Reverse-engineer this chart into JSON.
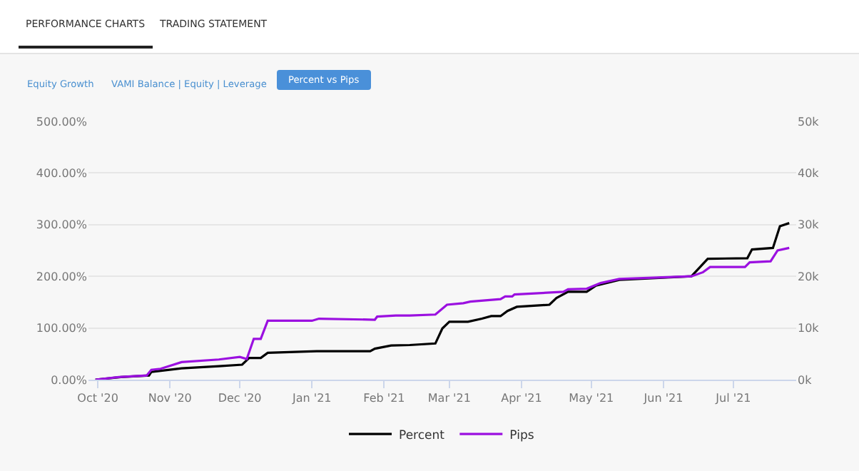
{
  "chart_data": {
    "type": "line",
    "annotations": [
      "PERFORMANCE CHARTS",
      "TRADING STATEMENT",
      "Equity Growth",
      "VAMI Balance | Equity | Leverage",
      "Percent vs Pips"
    ],
    "xlim": [
      "2020-09-27",
      "2021-07-28"
    ],
    "xticks": [
      {
        "value": "2020-10-01",
        "label": "Oct '20"
      },
      {
        "value": "2020-11-01",
        "label": "Nov '20"
      },
      {
        "value": "2020-12-01",
        "label": "Dec '20"
      },
      {
        "value": "2021-01-01",
        "label": "Jan '21"
      },
      {
        "value": "2021-02-01",
        "label": "Feb '21"
      },
      {
        "value": "2021-03-01",
        "label": "Mar '21"
      },
      {
        "value": "2021-04-01",
        "label": "Apr '21"
      },
      {
        "value": "2021-05-01",
        "label": "May '21"
      },
      {
        "value": "2021-06-01",
        "label": "Jun '21"
      },
      {
        "value": "2021-07-01",
        "label": "Jul '21"
      }
    ],
    "ylim": [
      0,
      500
    ],
    "yticks": [
      {
        "value": 0,
        "label": "0.00%"
      },
      {
        "value": 100,
        "label": "100.00%"
      },
      {
        "value": 200,
        "label": "200.00%"
      },
      {
        "value": 300,
        "label": "300.00%"
      },
      {
        "value": 400,
        "label": "400.00%"
      },
      {
        "value": 500,
        "label": "500.00%"
      }
    ],
    "y2lim": [
      0,
      50000
    ],
    "y2ticks": [
      {
        "value": 0,
        "label": "0k"
      },
      {
        "value": 10000,
        "label": "10k"
      },
      {
        "value": 20000,
        "label": "20k"
      },
      {
        "value": 30000,
        "label": "30k"
      },
      {
        "value": 40000,
        "label": "40k"
      },
      {
        "value": 50000,
        "label": "50k"
      }
    ],
    "grid": "y",
    "legend": "bottom",
    "marker": "none",
    "series": [
      {
        "name": "Percent",
        "color": "#000000",
        "x": [
          "2020-09-30",
          "2020-10-11",
          "2020-10-23",
          "2020-10-24",
          "2020-10-28",
          "2020-11-06",
          "2020-11-22",
          "2020-12-02",
          "2020-12-05",
          "2020-12-10",
          "2020-12-13",
          "2021-01-03",
          "2021-01-26",
          "2021-01-28",
          "2021-02-04",
          "2021-02-12",
          "2021-02-23",
          "2021-02-26",
          "2021-03-01",
          "2021-03-09",
          "2021-03-15",
          "2021-03-19",
          "2021-03-23",
          "2021-03-26",
          "2021-03-30",
          "2021-04-13",
          "2021-04-16",
          "2021-04-21",
          "2021-04-29",
          "2021-05-03",
          "2021-05-13",
          "2021-06-13",
          "2021-06-20",
          "2021-07-07",
          "2021-07-09",
          "2021-07-18",
          "2021-07-21",
          "2021-07-25"
        ],
        "values": [
          0,
          5,
          8,
          15,
          17,
          22,
          26,
          29,
          42,
          42,
          52,
          55,
          55,
          60,
          66,
          67,
          70,
          99,
          112,
          112,
          118,
          123,
          123,
          133,
          141,
          145,
          158,
          170,
          170,
          182,
          193,
          200,
          234,
          235,
          252,
          255,
          297,
          303
        ]
      },
      {
        "name": "Pips",
        "color": "#9b10e0",
        "axis": "y2",
        "x": [
          "2020-09-30",
          "2020-10-10",
          "2020-10-22",
          "2020-10-24",
          "2020-10-28",
          "2020-11-06",
          "2020-11-22",
          "2020-12-01",
          "2020-12-04",
          "2020-12-07",
          "2020-12-10",
          "2020-12-13",
          "2021-01-01",
          "2021-01-04",
          "2021-01-28",
          "2021-01-29",
          "2021-02-06",
          "2021-02-12",
          "2021-02-23",
          "2021-02-28",
          "2021-03-07",
          "2021-03-10",
          "2021-03-23",
          "2021-03-25",
          "2021-03-28",
          "2021-03-29",
          "2021-04-19",
          "2021-04-21",
          "2021-04-29",
          "2021-05-05",
          "2021-05-13",
          "2021-06-13",
          "2021-06-18",
          "2021-06-21",
          "2021-07-06",
          "2021-07-08",
          "2021-07-17",
          "2021-07-20",
          "2021-07-25"
        ],
        "values": [
          0,
          500,
          800,
          1900,
          2100,
          3400,
          3900,
          4400,
          4000,
          7900,
          7900,
          11400,
          11400,
          11800,
          11600,
          12200,
          12400,
          12400,
          12600,
          14500,
          14800,
          15100,
          15600,
          16100,
          16100,
          16500,
          17000,
          17500,
          17600,
          18700,
          19500,
          20000,
          20800,
          21800,
          21800,
          22700,
          22900,
          25000,
          25500
        ]
      }
    ]
  }
}
